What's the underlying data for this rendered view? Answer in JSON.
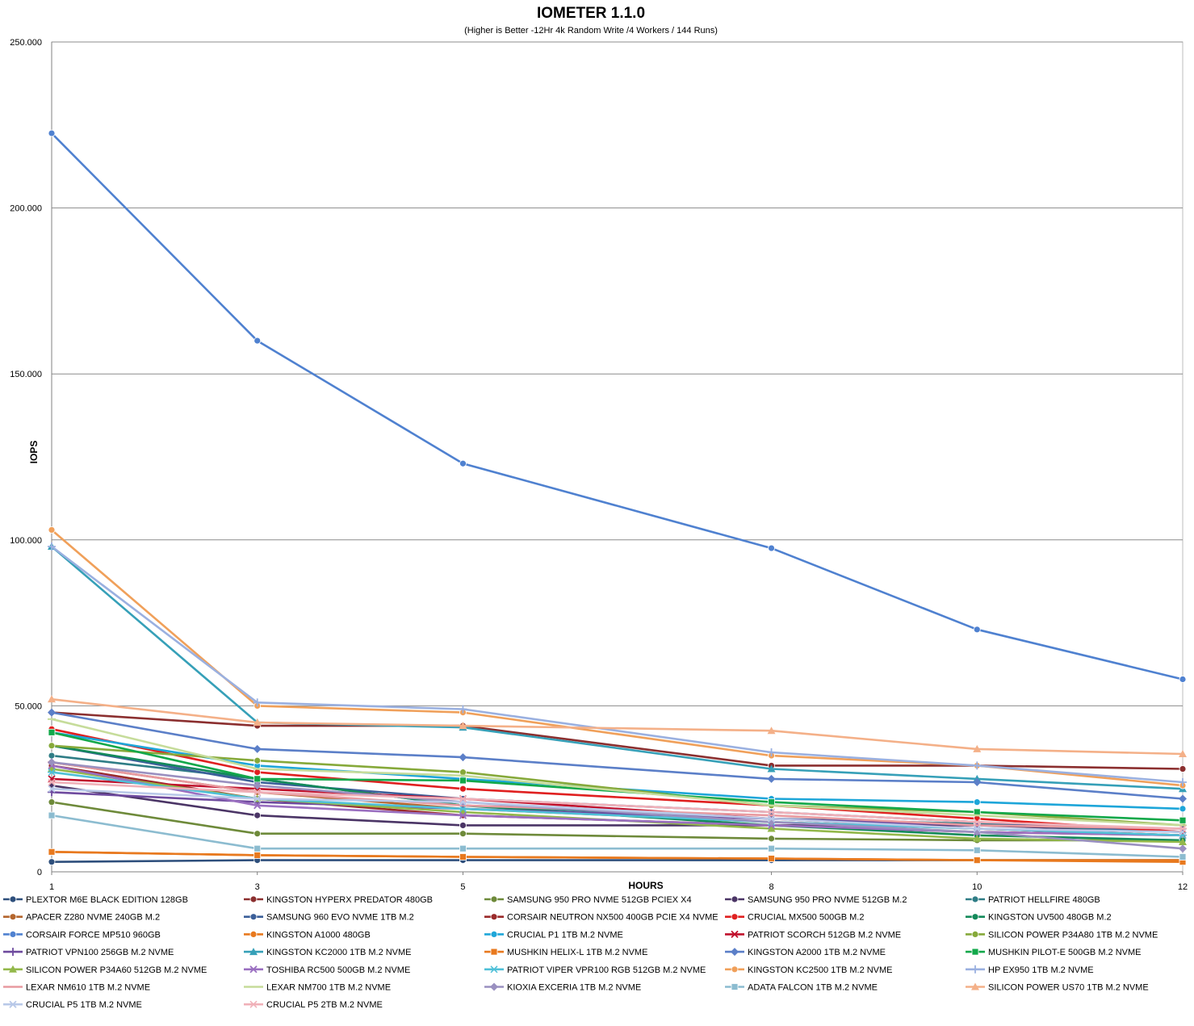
{
  "chart_data": {
    "type": "line",
    "title": "IOMETER 1.1.0",
    "subtitle": "(Higher is Better -12Hr 4k Random Write /4 Workers / 144 Runs)",
    "xlabel": "HOURS",
    "ylabel": "IOPS",
    "x": [
      1,
      3,
      5,
      8,
      10,
      12
    ],
    "x_tick_labels": [
      "1",
      "3",
      "5",
      "8",
      "10",
      "12"
    ],
    "ylim": [
      0,
      250000
    ],
    "y_ticks": [
      0,
      50000,
      100000,
      150000,
      200000,
      250000
    ],
    "y_tick_labels": [
      "0",
      "50.000",
      "100.000",
      "150.000",
      "200.000",
      "250.000"
    ],
    "grid": "horizontal",
    "legend_position": "bottom",
    "series": [
      {
        "name": "PLEXTOR M6E BLACK EDITION 128GB",
        "color": "#2e4f7c",
        "marker": "circle",
        "values": [
          3000,
          3500,
          3500,
          3500,
          3500,
          3500
        ]
      },
      {
        "name": "KINGSTON HYPERX PREDATOR 480GB",
        "color": "#8b2f2f",
        "marker": "circle",
        "values": [
          48000,
          44000,
          44000,
          32000,
          32000,
          31000
        ]
      },
      {
        "name": "SAMSUNG 950 PRO NVME 512GB PCIEX X4",
        "color": "#6e8a3a",
        "marker": "circle",
        "values": [
          21000,
          11500,
          11500,
          10000,
          9500,
          9500
        ]
      },
      {
        "name": "SAMSUNG 950 PRO NVME 512GB M.2",
        "color": "#4b3566",
        "marker": "circle",
        "values": [
          26000,
          17000,
          14000,
          14000,
          14000,
          12000
        ]
      },
      {
        "name": "PATRIOT HELLFIRE 480GB",
        "color": "#2f7d86",
        "marker": "circle",
        "values": [
          35000,
          28000,
          20000,
          16000,
          14500,
          12000
        ]
      },
      {
        "name": "APACER Z280 NVME 240GB M.2",
        "color": "#b4652d",
        "marker": "circle",
        "values": [
          33000,
          24000,
          19000,
          15000,
          13000,
          11000
        ]
      },
      {
        "name": "SAMSUNG 960 EVO NVME 1TB M.2",
        "color": "#3b5f99",
        "marker": "circle",
        "values": [
          38000,
          27000,
          22000,
          18000,
          15000,
          12000
        ]
      },
      {
        "name": "CORSAIR NEUTRON NX500 400GB PCIE X4 NVME",
        "color": "#9a2a2a",
        "marker": "circle",
        "values": [
          32000,
          22000,
          17000,
          14000,
          12000,
          11000
        ]
      },
      {
        "name": "CRUCIAL MX500 500GB M.2",
        "color": "#e02020",
        "marker": "circle",
        "values": [
          43000,
          30000,
          25000,
          20000,
          16000,
          12000
        ]
      },
      {
        "name": "KINGSTON UV500 480GB M.2",
        "color": "#138a5a",
        "marker": "circle",
        "values": [
          38000,
          28000,
          20000,
          14000,
          11000,
          9500
        ]
      },
      {
        "name": "CORSAIR FORCE MP510 960GB",
        "color": "#4f81d0",
        "marker": "circle",
        "values": [
          222500,
          160000,
          123000,
          97500,
          73000,
          58000
        ]
      },
      {
        "name": "KINGSTON A1000 480GB",
        "color": "#e8791e",
        "marker": "circle",
        "values": [
          6000,
          5000,
          4500,
          4000,
          3500,
          3500
        ]
      },
      {
        "name": "CRUCIAL P1 1TB M.2 NVME",
        "color": "#1ea6d9",
        "marker": "circle",
        "values": [
          42000,
          32000,
          28000,
          22000,
          21000,
          19000
        ]
      },
      {
        "name": "PATRIOT SCORCH 512GB M.2 NVME",
        "color": "#c0102c",
        "marker": "x",
        "values": [
          28000,
          25000,
          22000,
          16000,
          13000,
          11000
        ]
      },
      {
        "name": "SILICON POWER P34A80 1TB M.2 NVME",
        "color": "#86a93a",
        "marker": "circle",
        "values": [
          38000,
          33500,
          30000,
          20000,
          18000,
          14000
        ]
      },
      {
        "name": "PATRIOT VPN100 256GB M.2 NVME",
        "color": "#6e4a9e",
        "marker": "plus",
        "values": [
          24000,
          21000,
          19000,
          16000,
          14000,
          13000
        ]
      },
      {
        "name": "KINGSTON KC2000 1TB M.2 NVME",
        "color": "#36a0b8",
        "marker": "triangle",
        "values": [
          98000,
          45000,
          43500,
          31000,
          28000,
          25000
        ]
      },
      {
        "name": "MUSHKIN HELIX-L 1TB M.2 NVME",
        "color": "#e8791e",
        "marker": "square",
        "values": [
          6000,
          5000,
          4500,
          4000,
          3500,
          3000
        ]
      },
      {
        "name": "KINGSTON A2000 1TB M.2 NVME",
        "color": "#5b7fc8",
        "marker": "diamond",
        "values": [
          48000,
          37000,
          34500,
          28000,
          27000,
          22000
        ]
      },
      {
        "name": "MUSHKIN PILOT-E 500GB M.2 NVME",
        "color": "#12a84a",
        "marker": "square",
        "values": [
          42000,
          28000,
          27500,
          21000,
          18000,
          15500
        ]
      },
      {
        "name": "SILICON POWER P34A60 512GB M.2 NVME",
        "color": "#93b84a",
        "marker": "triangle",
        "values": [
          31000,
          22000,
          18000,
          13000,
          10000,
          9000
        ]
      },
      {
        "name": "TOSHIBA RC500 500GB M.2 NVME",
        "color": "#9a6fc0",
        "marker": "x",
        "values": [
          32000,
          20000,
          17000,
          14000,
          12000,
          11000
        ]
      },
      {
        "name": "PATRIOT VIPER VPR100 RGB 512GB M.2 NVME",
        "color": "#4fc0d8",
        "marker": "star",
        "values": [
          30000,
          22000,
          19000,
          15000,
          13000,
          11000
        ]
      },
      {
        "name": "KINGSTON KC2500 1TB M.2 NVME",
        "color": "#f0a05a",
        "marker": "circle",
        "values": [
          103000,
          50000,
          48000,
          35000,
          32000,
          26000
        ]
      },
      {
        "name": "HP EX950 1TB M.2 NVME",
        "color": "#9ab0e0",
        "marker": "plus",
        "values": [
          98000,
          51000,
          49000,
          36000,
          32000,
          27000
        ]
      },
      {
        "name": "LEXAR NM610 1TB M.2 NVME",
        "color": "#e89aa0",
        "marker": "dash",
        "values": [
          33000,
          24000,
          20000,
          17000,
          14000,
          13000
        ]
      },
      {
        "name": "LEXAR NM700 1TB M.2 NVME",
        "color": "#c6dc9a",
        "marker": "dash",
        "values": [
          46000,
          31000,
          29000,
          20000,
          17000,
          14000
        ]
      },
      {
        "name": "KIOXIA EXCERIA 1TB M.2 NVME",
        "color": "#9a90c0",
        "marker": "diamond",
        "values": [
          33000,
          26000,
          21000,
          15000,
          12000,
          7000
        ]
      },
      {
        "name": "ADATA FALCON 1TB M.2 NVME",
        "color": "#8cbcd0",
        "marker": "square",
        "values": [
          17000,
          7000,
          7000,
          7000,
          6500,
          4500
        ]
      },
      {
        "name": "SILICON POWER US70 1TB M.2 NVME",
        "color": "#f4b088",
        "marker": "triangle",
        "values": [
          52000,
          45000,
          44000,
          42500,
          37000,
          35500
        ]
      },
      {
        "name": "CRUCIAL P5 1TB M.2 NVME",
        "color": "#b8c8e8",
        "marker": "x",
        "values": [
          25000,
          22000,
          21000,
          16000,
          13000,
          12000
        ]
      },
      {
        "name": "CRUCIAL P5 2TB M.2 NVME",
        "color": "#f0b0b8",
        "marker": "star",
        "values": [
          27000,
          24000,
          22000,
          18000,
          15000,
          13000
        ]
      }
    ]
  }
}
